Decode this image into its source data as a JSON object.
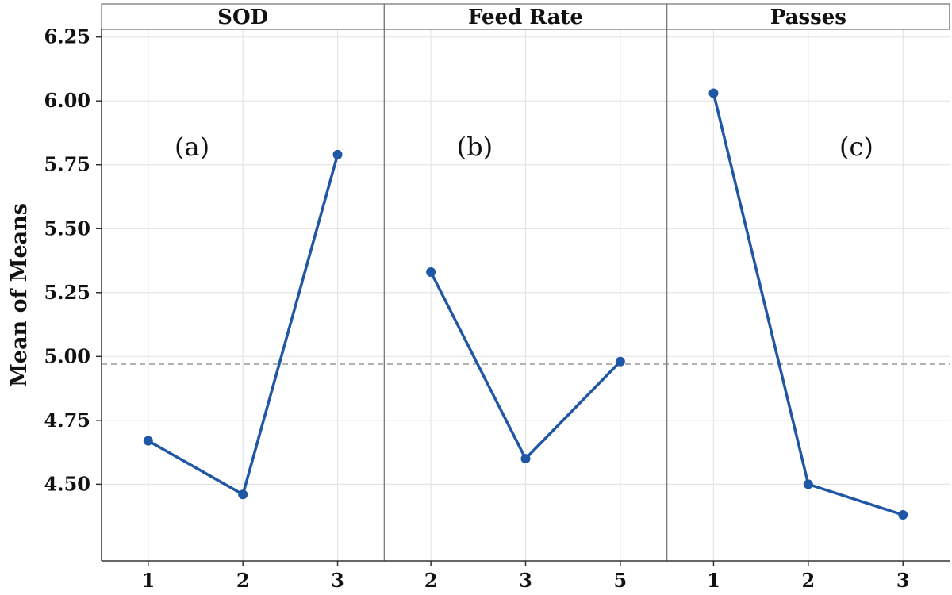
{
  "chart_data": {
    "type": "line",
    "ylabel": "Mean of Means",
    "ylim": [
      4.2,
      6.28
    ],
    "yticks": [
      4.5,
      4.75,
      5.0,
      5.25,
      5.5,
      5.75,
      6.0,
      6.25
    ],
    "ytick_labels": [
      "4.50",
      "4.75",
      "5.00",
      "5.25",
      "5.50",
      "5.75",
      "6.00",
      "6.25"
    ],
    "overall_mean": 4.97,
    "grid": true,
    "series_color": "#1f56a5",
    "mean_line_color": "#999999",
    "panels": [
      {
        "title": "SOD",
        "categories": [
          "1",
          "2",
          "3"
        ],
        "values": [
          4.67,
          4.46,
          5.79
        ],
        "annotation": "(a)"
      },
      {
        "title": "Feed Rate",
        "categories": [
          "2",
          "3",
          "5"
        ],
        "values": [
          5.33,
          4.6,
          4.98
        ],
        "annotation": "(b)"
      },
      {
        "title": "Passes",
        "categories": [
          "1",
          "2",
          "3"
        ],
        "values": [
          6.03,
          4.5,
          4.38
        ],
        "annotation": "(c)"
      }
    ]
  }
}
